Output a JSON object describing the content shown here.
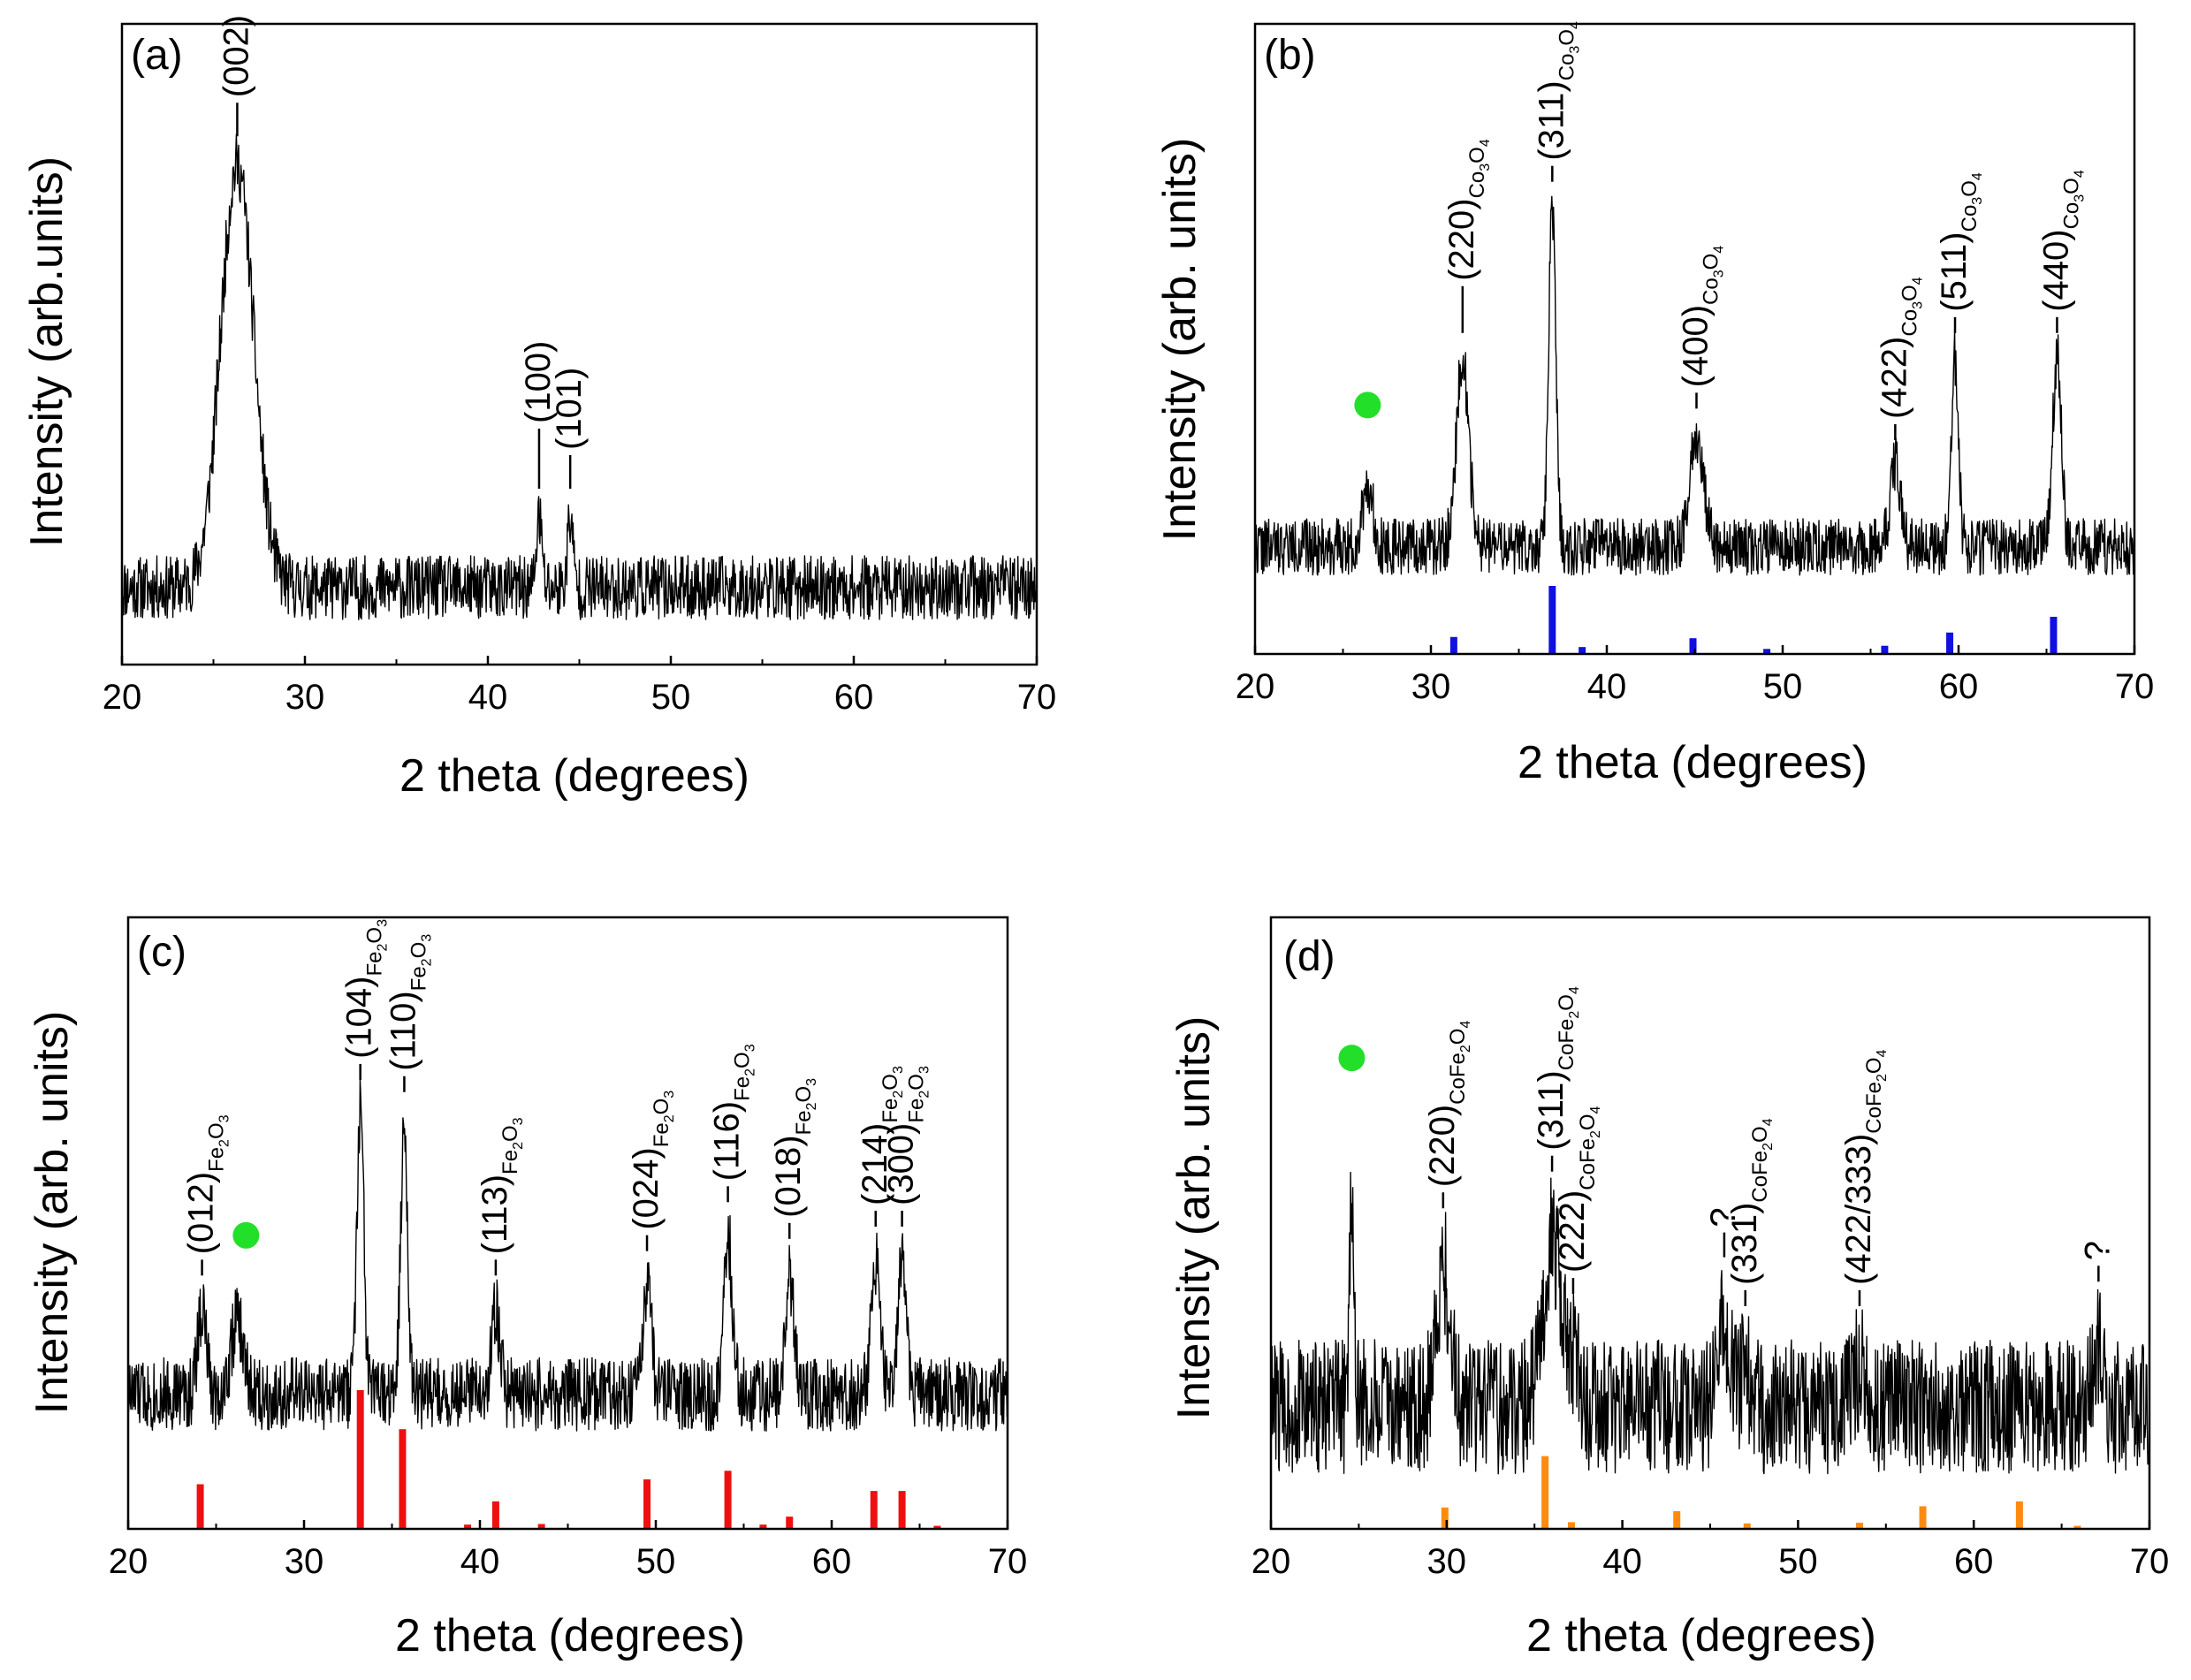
{
  "figure": {
    "marker_color": "#22e02a",
    "trace_color": "#000000"
  },
  "chart_data": [
    {
      "id": "a",
      "type": "line",
      "panel_label": "(a)",
      "xlabel": "2 theta (degrees)",
      "ylabel": "Intensity (arb.units)",
      "xlim": [
        20,
        70
      ],
      "xticks": [
        20,
        30,
        40,
        50,
        60,
        70
      ],
      "yticks": [],
      "ylim": [
        0,
        100
      ],
      "baseline": 12,
      "noise": 5,
      "seed": 11,
      "peaks": [
        {
          "x": 26.3,
          "height": 66,
          "width": 0.9,
          "label": "(002)",
          "sub": "",
          "subsub": []
        },
        {
          "x": 42.8,
          "height": 11,
          "width": 0.15,
          "label": "(100)",
          "sub": "",
          "subsub": []
        },
        {
          "x": 44.5,
          "height": 11,
          "width": 0.15,
          "label": "(101)",
          "sub": "",
          "subsub": []
        }
      ],
      "reference": null,
      "markers": []
    },
    {
      "id": "b",
      "type": "line",
      "panel_label": "(b)",
      "xlabel": "2 theta (degrees)",
      "ylabel": "Intensity (arb. units)",
      "xlim": [
        20,
        70
      ],
      "xticks": [
        20,
        30,
        40,
        50,
        60,
        70
      ],
      "yticks": [],
      "ylim": [
        0,
        100
      ],
      "baseline": 17,
      "noise": 4.5,
      "seed": 22,
      "peaks": [
        {
          "x": 26.4,
          "height": 10,
          "width": 0.3,
          "label": "",
          "sub": "",
          "subsub": []
        },
        {
          "x": 31.8,
          "height": 30,
          "width": 0.35,
          "label": "(220)",
          "sub": "Co",
          "subsub": [
            "3",
            "4"
          ]
        },
        {
          "x": 36.9,
          "height": 54,
          "width": 0.2,
          "label": "(311)",
          "sub": "Co",
          "subsub": [
            "3",
            "4"
          ]
        },
        {
          "x": 45.1,
          "height": 18,
          "width": 0.4,
          "label": "(400)",
          "sub": "Co",
          "subsub": [
            "3",
            "4"
          ]
        },
        {
          "x": 56.4,
          "height": 13,
          "width": 0.3,
          "label": "(422)",
          "sub": "Co",
          "subsub": [
            "3",
            "4"
          ]
        },
        {
          "x": 59.8,
          "height": 30,
          "width": 0.2,
          "label": "(511)",
          "sub": "Co",
          "subsub": [
            "3",
            "4"
          ]
        },
        {
          "x": 65.6,
          "height": 30,
          "width": 0.25,
          "label": "(440)",
          "sub": "Co",
          "subsub": [
            "3",
            "4"
          ]
        }
      ],
      "reference": {
        "color": "#1010e0",
        "x": [
          31.3,
          36.9,
          38.6,
          44.9,
          49.1,
          55.8,
          59.5,
          65.4
        ],
        "values": [
          2.7,
          10.8,
          1.1,
          2.5,
          0.8,
          1.3,
          3.4,
          5.9
        ]
      },
      "markers": [
        26.4
      ]
    },
    {
      "id": "c",
      "type": "line",
      "panel_label": "(c)",
      "xlabel": "2 theta (degrees)",
      "ylabel": "Intensity (arb. units)",
      "xlim": [
        20,
        70
      ],
      "xticks": [
        20,
        30,
        40,
        50,
        60,
        70
      ],
      "yticks": [],
      "ylim": [
        0,
        100
      ],
      "baseline": 22,
      "noise": 6,
      "seed": 33,
      "peaks": [
        {
          "x": 24.2,
          "height": 14,
          "width": 0.25,
          "label": "(012)",
          "sub": "Fe",
          "subsub": [
            "2",
            "3"
          ]
        },
        {
          "x": 26.2,
          "height": 12,
          "width": 0.35,
          "label": "",
          "sub": "",
          "subsub": []
        },
        {
          "x": 33.2,
          "height": 46,
          "width": 0.2,
          "label": "(104)",
          "sub": "Fe",
          "subsub": [
            "2",
            "3"
          ]
        },
        {
          "x": 35.7,
          "height": 44,
          "width": 0.2,
          "label": "(110)",
          "sub": "Fe",
          "subsub": [
            "2",
            "3"
          ]
        },
        {
          "x": 40.9,
          "height": 14,
          "width": 0.25,
          "label": "(113)",
          "sub": "Fe",
          "subsub": [
            "2",
            "3"
          ]
        },
        {
          "x": 49.5,
          "height": 18,
          "width": 0.25,
          "label": "(024)",
          "sub": "Fe",
          "subsub": [
            "2",
            "3"
          ]
        },
        {
          "x": 54.1,
          "height": 26,
          "width": 0.25,
          "label": "(116)",
          "sub": "Fe",
          "subsub": [
            "2",
            "3"
          ]
        },
        {
          "x": 57.6,
          "height": 20,
          "width": 0.25,
          "label": "(018)",
          "sub": "Fe",
          "subsub": [
            "2",
            "3"
          ]
        },
        {
          "x": 62.5,
          "height": 22,
          "width": 0.25,
          "label": "(214)",
          "sub": "Fe",
          "subsub": [
            "2",
            "3"
          ]
        },
        {
          "x": 64.0,
          "height": 22,
          "width": 0.25,
          "label": "(300)",
          "sub": "Fe",
          "subsub": [
            "2",
            "3"
          ]
        }
      ],
      "reference": {
        "color": "#ee1010",
        "x": [
          24.1,
          33.2,
          35.6,
          39.3,
          40.9,
          43.5,
          49.5,
          54.1,
          56.1,
          57.6,
          62.4,
          64.0,
          66.0
        ],
        "values": [
          7.3,
          22.7,
          16.3,
          0.7,
          4.5,
          0.8,
          8.1,
          9.5,
          0.7,
          2.0,
          6.2,
          6.2,
          0.5
        ]
      },
      "markers": [
        26.2
      ]
    },
    {
      "id": "d",
      "type": "line",
      "panel_label": "(d)",
      "xlabel": "2 theta (degrees)",
      "ylabel": "Intensity (arb. units)",
      "xlim": [
        20,
        70
      ],
      "xticks": [
        20,
        30,
        40,
        50,
        60,
        70
      ],
      "yticks": [],
      "ylim": [
        0,
        100
      ],
      "baseline": 20,
      "noise": 11,
      "seed": 44,
      "peaks": [
        {
          "x": 24.6,
          "height": 38,
          "width": 0.12,
          "label": "",
          "sub": "",
          "subsub": []
        },
        {
          "x": 29.8,
          "height": 22,
          "width": 0.4,
          "label": "(220)",
          "sub": "CoFe",
          "subsub": [
            "2",
            "4"
          ]
        },
        {
          "x": 36.0,
          "height": 28,
          "width": 0.5,
          "label": "(311)",
          "sub": "CoFe",
          "subsub": [
            "2",
            "4"
          ]
        },
        {
          "x": 37.2,
          "height": 8,
          "width": 0.3,
          "label": "(222)",
          "sub": "CoFe",
          "subsub": [
            "2",
            "4"
          ]
        },
        {
          "x": 45.8,
          "height": 14,
          "width": 0.35,
          "label": "?",
          "sub": "",
          "subsub": []
        },
        {
          "x": 47.0,
          "height": 6,
          "width": 0.3,
          "label": "(331)",
          "sub": "CoFe",
          "subsub": [
            "2",
            "4"
          ]
        },
        {
          "x": 53.5,
          "height": 6,
          "width": 0.4,
          "label": "(422/333)",
          "sub": "CoFe",
          "subsub": [
            "2",
            "4"
          ]
        },
        {
          "x": 67.1,
          "height": 10,
          "width": 0.3,
          "label": "?",
          "sub": "",
          "subsub": []
        }
      ],
      "reference": {
        "color": "#ff8a10",
        "x": [
          29.9,
          35.6,
          37.1,
          43.1,
          47.1,
          53.5,
          57.1,
          62.6,
          65.9
        ],
        "values": [
          3.5,
          11.9,
          1.1,
          2.9,
          0.9,
          1.0,
          3.7,
          4.5,
          0.5
        ]
      },
      "markers": [
        24.6
      ]
    }
  ]
}
